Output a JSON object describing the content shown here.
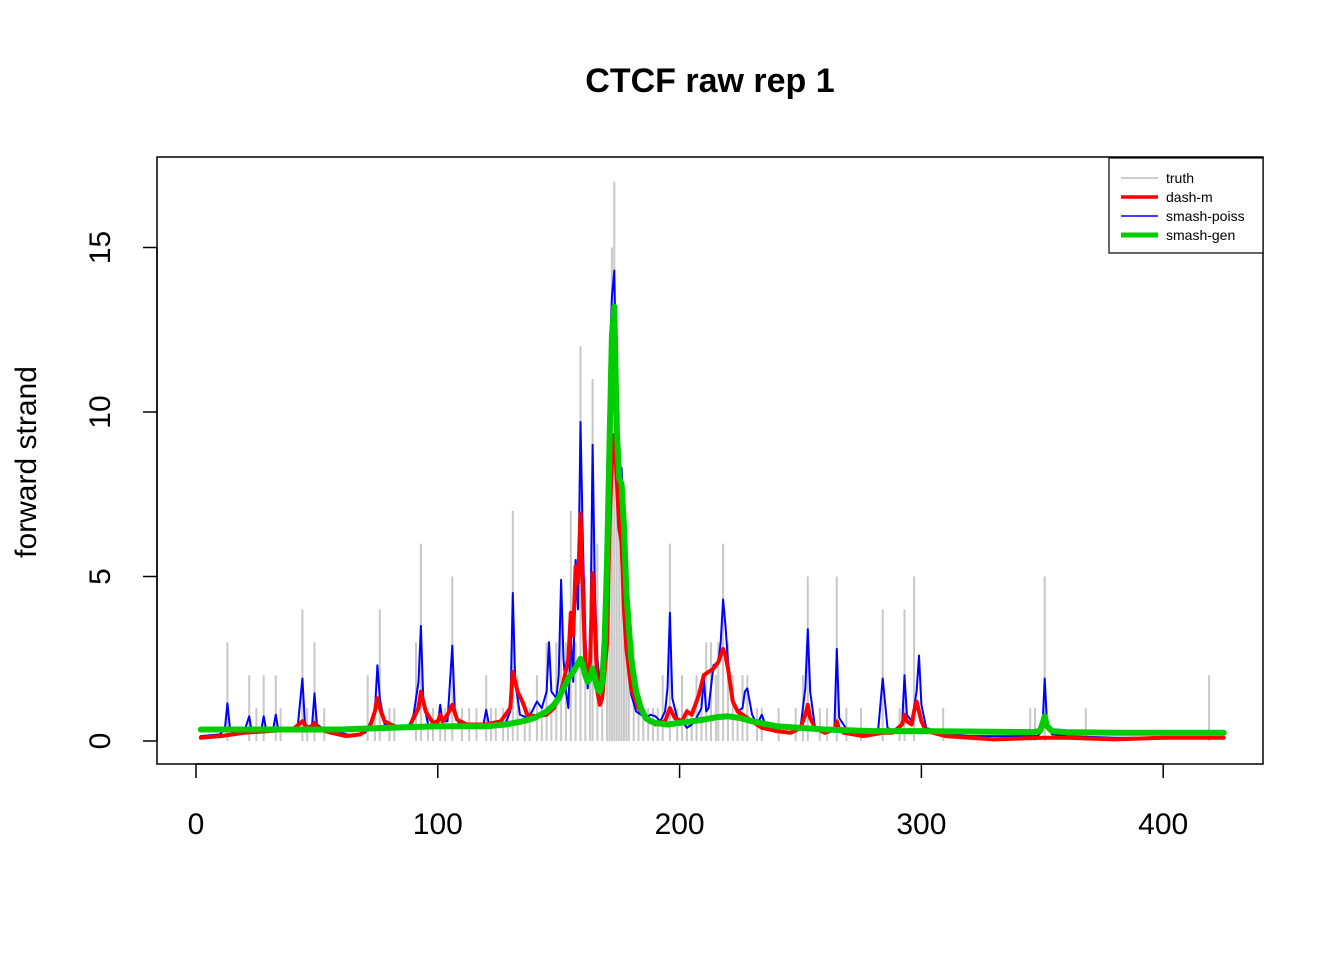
{
  "chart_data": {
    "type": "line",
    "title": "CTCF raw rep 1",
    "xlabel": "",
    "ylabel": "forward strand",
    "xlim": [
      0,
      425
    ],
    "ylim": [
      0,
      17
    ],
    "x_ticks": [
      0,
      100,
      200,
      300,
      400
    ],
    "y_ticks": [
      0,
      5,
      10,
      15
    ],
    "x_tick_labels": [
      "0",
      "100",
      "200",
      "300",
      "400"
    ],
    "y_tick_labels": [
      "0",
      "5",
      "10",
      "15"
    ],
    "legend": {
      "position": "top-right",
      "entries": [
        {
          "label": "truth",
          "color": "#bebebe"
        },
        {
          "label": "dash-m",
          "color": "#ff0000"
        },
        {
          "label": "smash-poiss",
          "color": "#0000ff"
        },
        {
          "label": "smash-gen",
          "color": "#00cd00"
        }
      ]
    },
    "truth_bars": [
      [
        13,
        3
      ],
      [
        22,
        2
      ],
      [
        25,
        1
      ],
      [
        28,
        2
      ],
      [
        33,
        2
      ],
      [
        35,
        1
      ],
      [
        44,
        4
      ],
      [
        46,
        1
      ],
      [
        49,
        3
      ],
      [
        53,
        1
      ],
      [
        71,
        2
      ],
      [
        74,
        1
      ],
      [
        76,
        4
      ],
      [
        80,
        1
      ],
      [
        82,
        1
      ],
      [
        91,
        3
      ],
      [
        93,
        6
      ],
      [
        96,
        1
      ],
      [
        98,
        1
      ],
      [
        101,
        1
      ],
      [
        103,
        1
      ],
      [
        106,
        5
      ],
      [
        110,
        1
      ],
      [
        113,
        1
      ],
      [
        116,
        1
      ],
      [
        120,
        2
      ],
      [
        122,
        1
      ],
      [
        124,
        1
      ],
      [
        127,
        1
      ],
      [
        129,
        1
      ],
      [
        131,
        7
      ],
      [
        133,
        2
      ],
      [
        136,
        1
      ],
      [
        138,
        1
      ],
      [
        141,
        2
      ],
      [
        143,
        1
      ],
      [
        145,
        3
      ],
      [
        147,
        1
      ],
      [
        149,
        3
      ],
      [
        151,
        4
      ],
      [
        153,
        3
      ],
      [
        155,
        7
      ],
      [
        157,
        3
      ],
      [
        159,
        12
      ],
      [
        161,
        5
      ],
      [
        163,
        3
      ],
      [
        164,
        11
      ],
      [
        166,
        6
      ],
      [
        168,
        3
      ],
      [
        170,
        4
      ],
      [
        171,
        9
      ],
      [
        172,
        15
      ],
      [
        173,
        17
      ],
      [
        174,
        8
      ],
      [
        175,
        10
      ],
      [
        176,
        7
      ],
      [
        177,
        5
      ],
      [
        178,
        3
      ],
      [
        179,
        2
      ],
      [
        181,
        3
      ],
      [
        183,
        1
      ],
      [
        185,
        1
      ],
      [
        187,
        1
      ],
      [
        189,
        1
      ],
      [
        191,
        1
      ],
      [
        193,
        2
      ],
      [
        196,
        6
      ],
      [
        199,
        1
      ],
      [
        201,
        2
      ],
      [
        203,
        1
      ],
      [
        205,
        1
      ],
      [
        207,
        2
      ],
      [
        209,
        1
      ],
      [
        211,
        3
      ],
      [
        213,
        3
      ],
      [
        215,
        2
      ],
      [
        216,
        3
      ],
      [
        218,
        6
      ],
      [
        220,
        3
      ],
      [
        222,
        2
      ],
      [
        224,
        1
      ],
      [
        226,
        2
      ],
      [
        228,
        2
      ],
      [
        232,
        1
      ],
      [
        234,
        1
      ],
      [
        241,
        1
      ],
      [
        248,
        1
      ],
      [
        251,
        2
      ],
      [
        253,
        5
      ],
      [
        258,
        1
      ],
      [
        261,
        1
      ],
      [
        265,
        5
      ],
      [
        269,
        1
      ],
      [
        275,
        1
      ],
      [
        284,
        4
      ],
      [
        291,
        1
      ],
      [
        293,
        4
      ],
      [
        297,
        5
      ],
      [
        309,
        1
      ],
      [
        345,
        1
      ],
      [
        347,
        1
      ],
      [
        351,
        5
      ],
      [
        368,
        1
      ],
      [
        419,
        2
      ]
    ],
    "series": [
      {
        "name": "smash-poiss",
        "color": "#0000ff",
        "x": [
          2,
          10,
          12,
          13,
          14,
          16,
          20,
          22,
          23,
          24,
          27,
          28,
          29,
          31,
          32,
          33,
          34,
          36,
          42,
          44,
          45,
          46,
          48,
          49,
          50,
          53,
          60,
          65,
          70,
          72,
          74,
          75,
          76,
          78,
          82,
          85,
          88,
          90,
          92,
          93,
          94,
          96,
          98,
          100,
          101,
          102,
          104,
          106,
          107,
          109,
          114,
          117,
          119,
          120,
          121,
          124,
          128,
          130,
          131,
          132,
          134,
          137,
          139,
          141,
          143,
          145,
          146,
          147,
          149,
          150,
          151,
          152,
          153,
          154,
          155,
          156,
          157,
          158,
          159,
          160,
          161,
          162,
          163,
          164,
          165,
          166,
          167,
          168,
          169,
          170,
          171,
          172,
          173,
          174,
          175,
          176,
          177,
          178,
          179,
          180,
          182,
          184,
          186,
          188,
          190,
          192,
          194,
          195,
          196,
          197,
          199,
          201,
          203,
          205,
          207,
          209,
          210,
          211,
          212,
          214,
          216,
          217,
          218,
          219,
          220,
          222,
          224,
          226,
          227,
          228,
          230,
          232,
          234,
          236,
          240,
          245,
          250,
          252,
          253,
          254,
          256,
          260,
          264,
          265,
          266,
          270,
          278,
          282,
          284,
          286,
          290,
          292,
          293,
          294,
          296,
          298,
          299,
          300,
          302,
          310,
          320,
          340,
          348,
          350,
          351,
          352,
          354,
          360,
          380,
          400,
          425
        ],
        "y": [
          0.15,
          0.2,
          0.4,
          1.15,
          0.4,
          0.25,
          0.3,
          0.75,
          0.3,
          0.3,
          0.35,
          0.75,
          0.35,
          0.35,
          0.4,
          0.8,
          0.35,
          0.35,
          0.4,
          1.9,
          0.6,
          0.4,
          0.5,
          1.45,
          0.5,
          0.35,
          0.25,
          0.15,
          0.25,
          0.55,
          0.9,
          2.3,
          1.3,
          0.5,
          0.45,
          0.4,
          0.45,
          0.8,
          1.8,
          3.5,
          1.2,
          0.5,
          0.4,
          0.5,
          1.1,
          0.6,
          0.6,
          2.9,
          1.0,
          0.45,
          0.4,
          0.45,
          0.55,
          0.95,
          0.55,
          0.5,
          0.55,
          0.9,
          4.5,
          1.8,
          0.8,
          0.7,
          0.9,
          1.2,
          1.0,
          1.5,
          3.0,
          1.5,
          1.3,
          2.0,
          4.9,
          2.5,
          1.5,
          1.0,
          3.3,
          1.8,
          5.5,
          4.0,
          9.7,
          6.0,
          3.3,
          1.6,
          2.5,
          9.0,
          4.4,
          2.5,
          1.8,
          1.4,
          2.0,
          5.0,
          11.5,
          13.5,
          14.3,
          10.0,
          7.0,
          8.3,
          6.5,
          4.0,
          2.0,
          1.4,
          0.9,
          0.8,
          0.7,
          0.8,
          0.75,
          0.6,
          0.9,
          1.6,
          3.9,
          1.3,
          0.7,
          0.6,
          0.4,
          0.5,
          0.7,
          1.0,
          1.9,
          0.9,
          1.0,
          2.3,
          2.4,
          3.0,
          4.3,
          3.5,
          2.4,
          1.2,
          0.9,
          1.0,
          1.5,
          1.6,
          0.8,
          0.5,
          0.8,
          0.4,
          0.3,
          0.25,
          0.4,
          1.6,
          3.4,
          1.5,
          0.4,
          0.25,
          0.4,
          2.8,
          0.7,
          0.25,
          0.2,
          0.25,
          1.9,
          0.4,
          0.25,
          0.5,
          2.0,
          0.8,
          0.6,
          1.5,
          2.6,
          1.1,
          0.4,
          0.2,
          0.15,
          0.15,
          0.15,
          0.3,
          1.9,
          0.5,
          0.2,
          0.15,
          0.1,
          0.1,
          0.1
        ]
      },
      {
        "name": "dash-m",
        "color": "#ff0000",
        "x": [
          2,
          10,
          20,
          30,
          40,
          44,
          46,
          48,
          49,
          51,
          56,
          62,
          68,
          72,
          74,
          75,
          76,
          78,
          82,
          88,
          92,
          93,
          95,
          98,
          100,
          101,
          102,
          104,
          106,
          108,
          112,
          120,
          126,
          130,
          131,
          133,
          135,
          137,
          141,
          145,
          148,
          150,
          152,
          154,
          155,
          156,
          157,
          158,
          159,
          160,
          161,
          162,
          163,
          164,
          165,
          166,
          167,
          168,
          170,
          171,
          172,
          173,
          174,
          175,
          176,
          177,
          178,
          180,
          183,
          186,
          190,
          194,
          196,
          198,
          201,
          203,
          205,
          208,
          210,
          212,
          214,
          216,
          217,
          218,
          219,
          220,
          222,
          224,
          226,
          230,
          234,
          240,
          246,
          250,
          252,
          253,
          254,
          256,
          260,
          264,
          265,
          266,
          268,
          276,
          284,
          288,
          292,
          293,
          294,
          296,
          297,
          298,
          300,
          302,
          310,
          330,
          350,
          360,
          380,
          400,
          425
        ],
        "y": [
          0.1,
          0.15,
          0.25,
          0.3,
          0.35,
          0.6,
          0.4,
          0.45,
          0.55,
          0.35,
          0.25,
          0.15,
          0.2,
          0.45,
          0.9,
          1.3,
          1.0,
          0.6,
          0.45,
          0.4,
          1.0,
          1.5,
          0.9,
          0.55,
          0.6,
          0.8,
          0.6,
          0.8,
          1.1,
          0.65,
          0.5,
          0.5,
          0.6,
          1.0,
          2.1,
          1.5,
          1.2,
          0.8,
          0.75,
          0.8,
          1.0,
          1.3,
          1.8,
          2.5,
          3.9,
          3.2,
          5.3,
          4.8,
          6.9,
          4.5,
          2.3,
          2.0,
          2.4,
          5.1,
          3.5,
          1.5,
          1.1,
          1.3,
          3.0,
          6.5,
          8.5,
          9.3,
          8.0,
          6.5,
          6.0,
          4.0,
          2.8,
          1.6,
          1.0,
          0.7,
          0.5,
          0.6,
          1.0,
          0.7,
          0.6,
          0.9,
          0.8,
          1.4,
          2.0,
          2.1,
          2.2,
          2.4,
          2.6,
          2.8,
          2.6,
          2.2,
          1.2,
          0.9,
          0.8,
          0.6,
          0.4,
          0.3,
          0.25,
          0.4,
          0.8,
          1.1,
          0.7,
          0.4,
          0.25,
          0.35,
          0.6,
          0.35,
          0.25,
          0.15,
          0.25,
          0.25,
          0.5,
          0.8,
          0.6,
          0.5,
          0.9,
          1.2,
          0.6,
          0.3,
          0.15,
          0.05,
          0.1,
          0.1,
          0.05,
          0.1,
          0.1
        ]
      },
      {
        "name": "smash-gen",
        "color": "#00cd00",
        "x": [
          2,
          20,
          40,
          60,
          80,
          100,
          120,
          128,
          135,
          140,
          145,
          148,
          150,
          152,
          154,
          156,
          158,
          159,
          160,
          161,
          162,
          163,
          164,
          166,
          167,
          168,
          169,
          170,
          171,
          172,
          173,
          174,
          175,
          176,
          177,
          178,
          180,
          182,
          184,
          186,
          188,
          190,
          195,
          200,
          205,
          210,
          215,
          220,
          225,
          230,
          240,
          260,
          280,
          300,
          330,
          346,
          349,
          350,
          351,
          352,
          354,
          360,
          380,
          400,
          425
        ],
        "y": [
          0.35,
          0.35,
          0.35,
          0.35,
          0.4,
          0.45,
          0.45,
          0.5,
          0.6,
          0.7,
          0.9,
          1.1,
          1.3,
          1.6,
          1.9,
          2.1,
          2.35,
          2.5,
          2.3,
          2.0,
          1.8,
          1.9,
          2.2,
          1.6,
          1.5,
          1.8,
          3.0,
          5.5,
          9.0,
          12.3,
          13.2,
          9.5,
          8.0,
          7.8,
          6.5,
          4.5,
          2.5,
          1.5,
          1.0,
          0.7,
          0.6,
          0.55,
          0.5,
          0.55,
          0.6,
          0.65,
          0.72,
          0.75,
          0.7,
          0.6,
          0.45,
          0.35,
          0.3,
          0.3,
          0.28,
          0.27,
          0.3,
          0.5,
          0.75,
          0.45,
          0.3,
          0.27,
          0.25,
          0.25,
          0.25
        ]
      }
    ]
  }
}
